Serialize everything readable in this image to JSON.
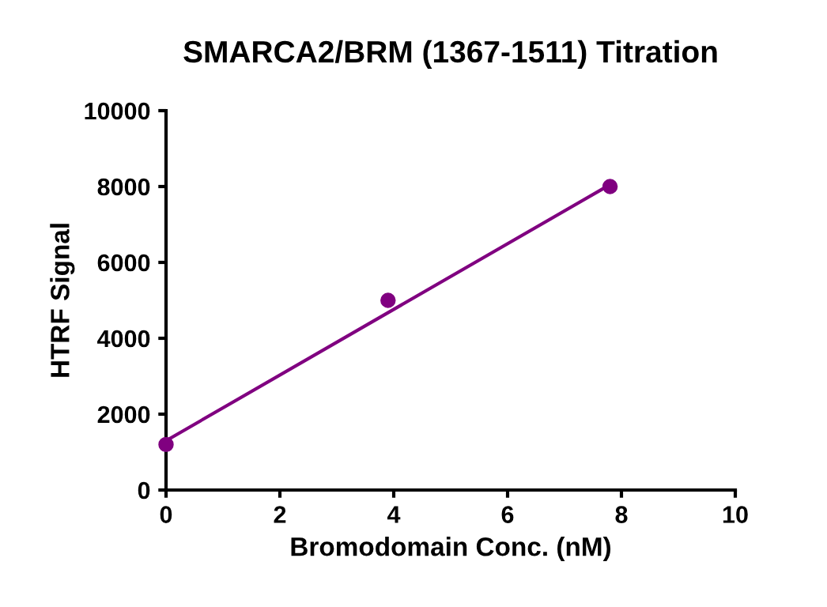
{
  "chart_data": {
    "type": "scatter",
    "title": "SMARCA2/BRM (1367-1511) Titration",
    "xlabel": "Bromodomain Conc. (nM)",
    "ylabel": "HTRF Signal",
    "series": [
      {
        "color": "#800080",
        "x": [
          0,
          3.9,
          7.8
        ],
        "values": [
          1200,
          5000,
          8000
        ],
        "marker": "circle"
      },
      {
        "type": "line",
        "color": "#800080",
        "x": [
          0,
          7.8
        ],
        "values": [
          1300,
          8050
        ],
        "marker": "none"
      }
    ],
    "xlim": [
      0,
      10
    ],
    "ylim": [
      0,
      10000
    ],
    "xticks": [
      0,
      2,
      4,
      6,
      8,
      10
    ],
    "yticks": [
      0,
      2000,
      4000,
      6000,
      8000,
      10000
    ],
    "grid": false,
    "legend": false
  }
}
